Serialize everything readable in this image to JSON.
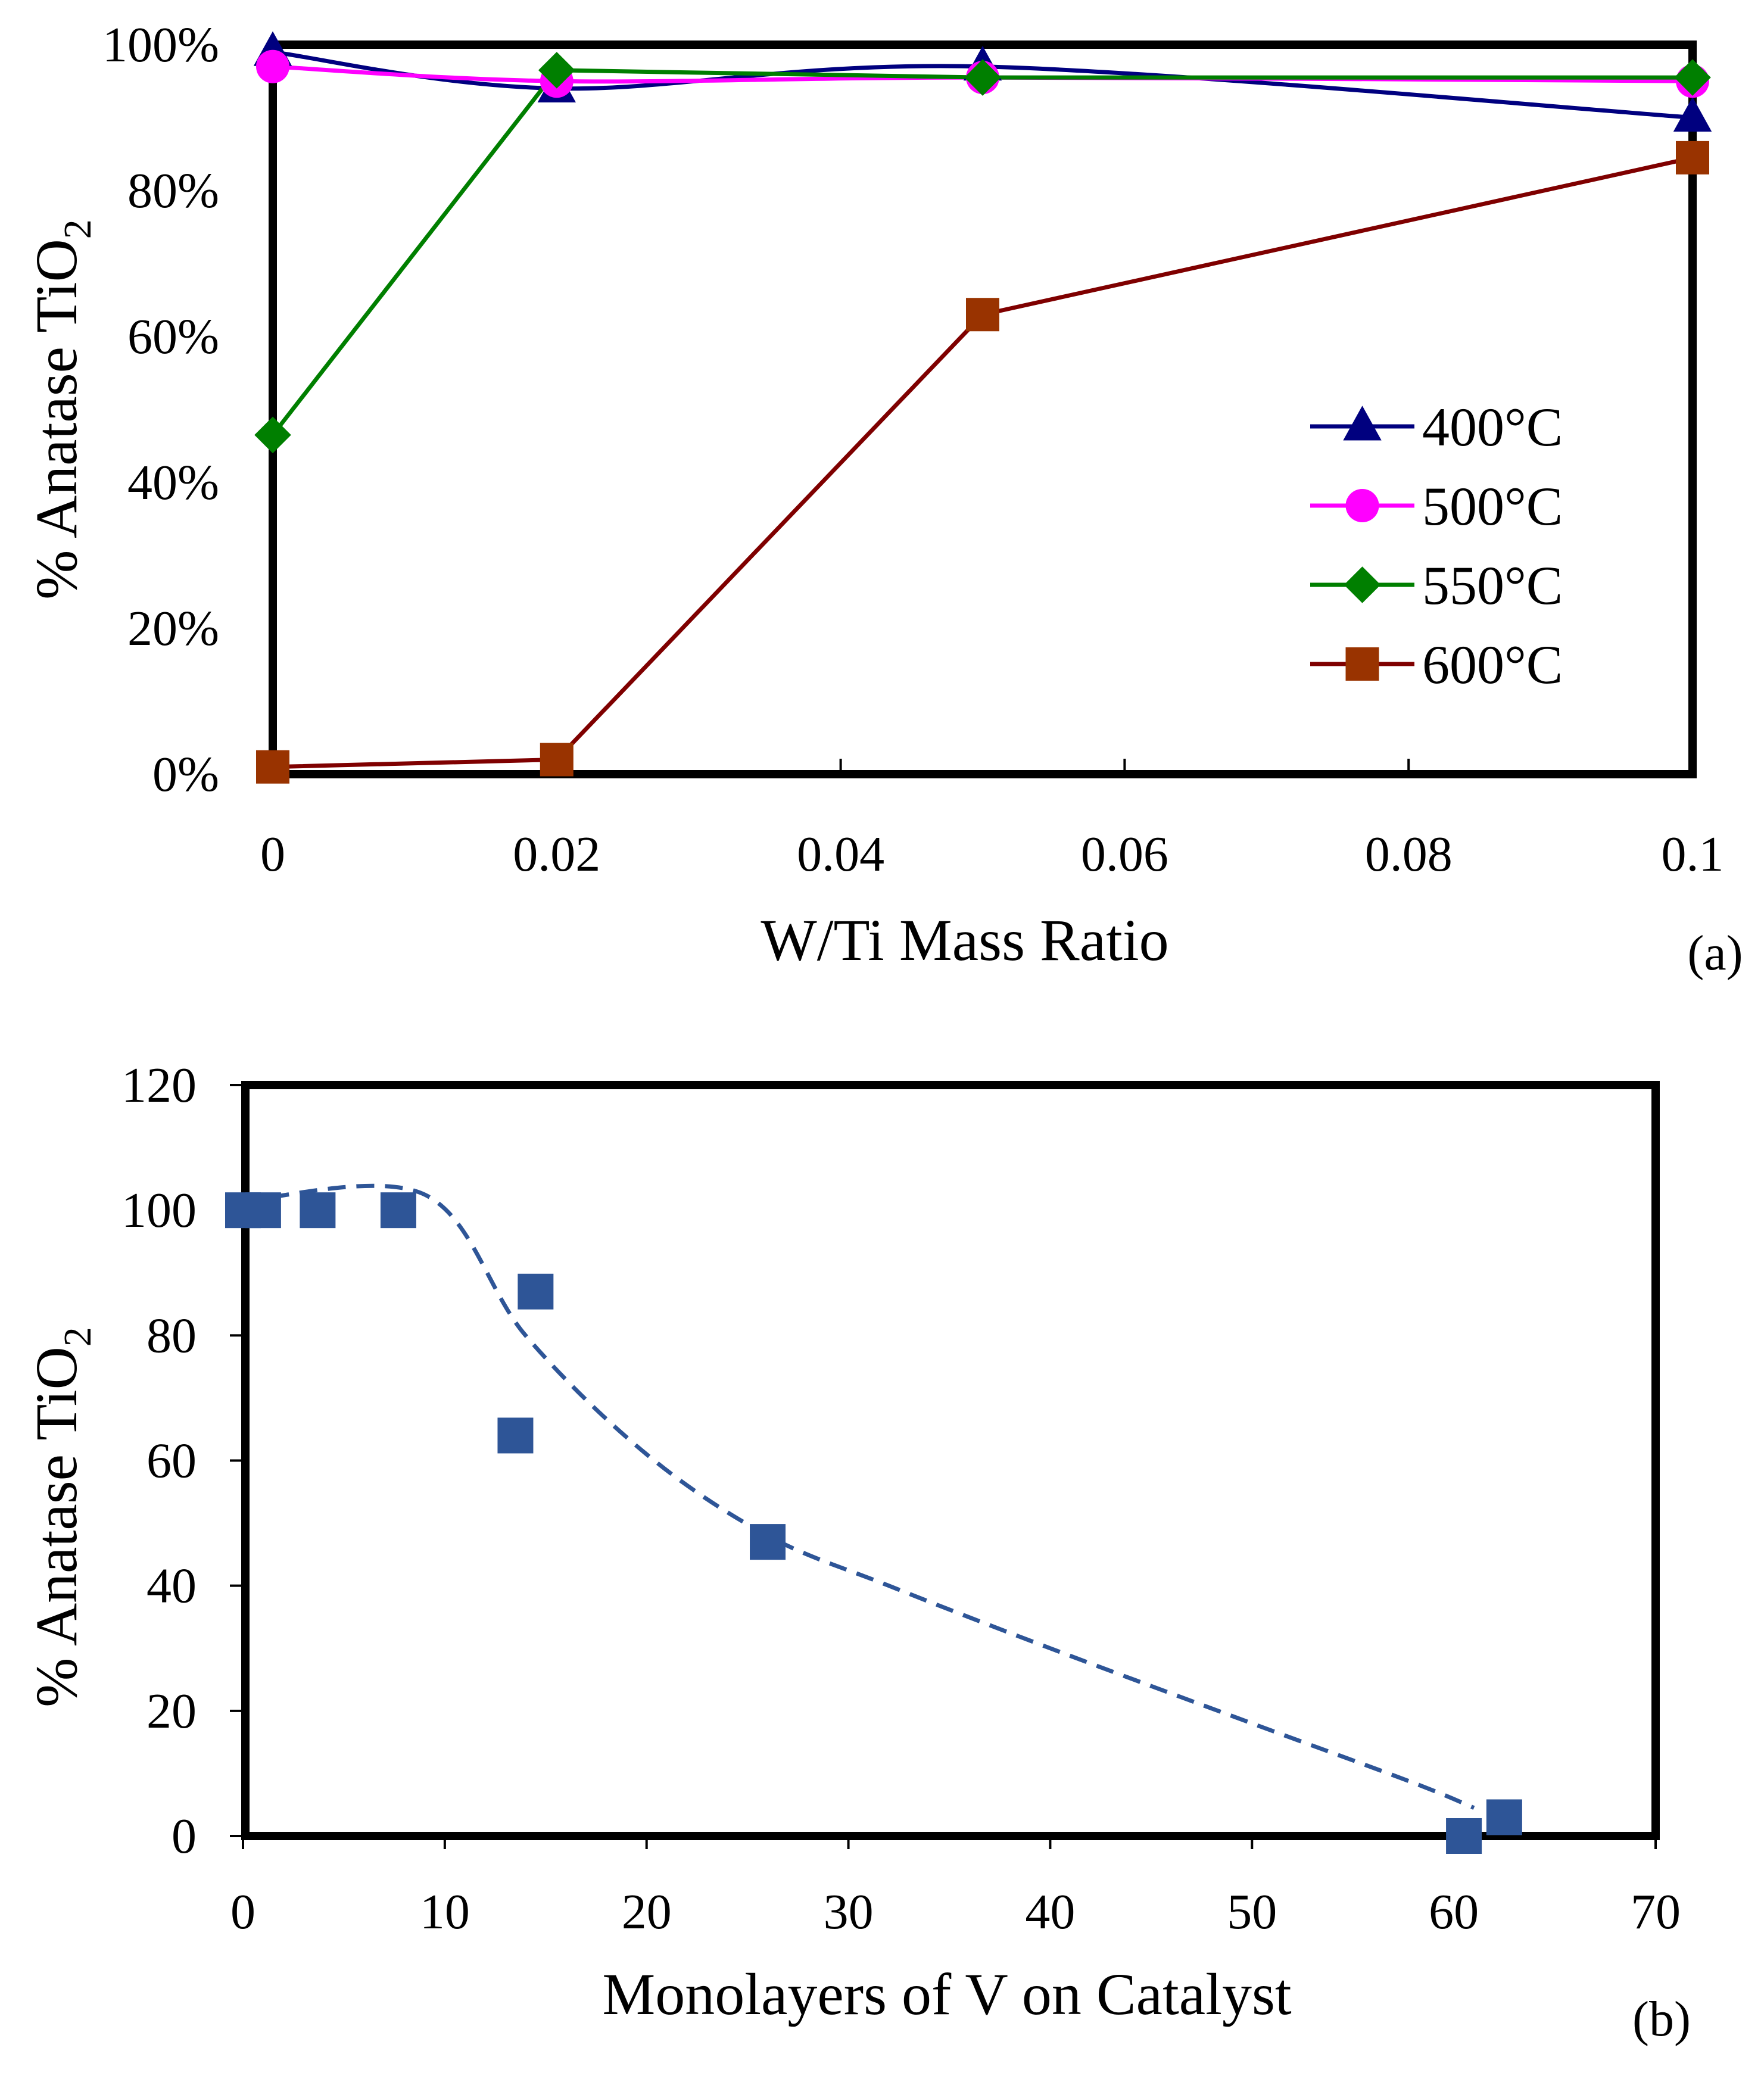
{
  "chart_data": [
    {
      "type": "line",
      "panel_label": "(a)",
      "title": "",
      "xlabel": "W/Ti Mass Ratio",
      "ylabel": "% Anatase TiO",
      "ylabel_subscript": "2",
      "x": [
        0,
        0.02,
        0.05,
        0.1
      ],
      "xlim": [
        0,
        0.1
      ],
      "ylim": [
        0,
        100
      ],
      "x_ticks": [
        0,
        0.02,
        0.04,
        0.06,
        0.08,
        0.1
      ],
      "x_tick_labels": [
        "0",
        "0.02",
        "0.04",
        "0.06",
        "0.08",
        "0.1"
      ],
      "y_ticks": [
        0,
        20,
        40,
        60,
        80,
        100
      ],
      "y_tick_labels": [
        "0%",
        "20%",
        "40%",
        "60%",
        "80%",
        "100%"
      ],
      "legend_position": "right",
      "series": [
        {
          "name": "400°C",
          "values": [
            99,
            94,
            97,
            90
          ],
          "color": "#00007f",
          "marker": "triangle",
          "smooth": true
        },
        {
          "name": "500°C",
          "values": [
            97,
            95,
            95.5,
            95
          ],
          "color": "#ff00ff",
          "marker": "circle",
          "smooth": true
        },
        {
          "name": "550°C",
          "values": [
            46.5,
            96.5,
            95.5,
            95.5
          ],
          "color": "#007f00",
          "marker": "diamond",
          "smooth": false
        },
        {
          "name": "600°C",
          "values": [
            1,
            2,
            63,
            84.5
          ],
          "color": "#7f0000",
          "marker_color": "#993300",
          "marker": "square",
          "smooth": false
        }
      ]
    },
    {
      "type": "scatter",
      "panel_label": "(b)",
      "title": "",
      "xlabel": "Monolayers of V on Catalyst",
      "ylabel": "% Anatase TiO",
      "ylabel_subscript": "2",
      "xlim": [
        0,
        70
      ],
      "ylim": [
        0,
        120
      ],
      "x_ticks": [
        0,
        10,
        20,
        30,
        40,
        50,
        60,
        70
      ],
      "x_tick_labels": [
        "0",
        "10",
        "20",
        "30",
        "40",
        "50",
        "60",
        "70"
      ],
      "y_ticks": [
        0,
        20,
        40,
        60,
        80,
        100,
        120
      ],
      "y_tick_labels": [
        "0",
        "20",
        "40",
        "60",
        "80",
        "100",
        "120"
      ],
      "series": [
        {
          "name": "data",
          "color": "#2e5597",
          "marker": "square",
          "points": [
            [
              0,
              100
            ],
            [
              1,
              100
            ],
            [
              3.7,
              100
            ],
            [
              7.7,
              100
            ],
            [
              13.5,
              64
            ],
            [
              14.5,
              87
            ],
            [
              26,
              47
            ],
            [
              60.5,
              0
            ],
            [
              62.5,
              3
            ]
          ]
        }
      ],
      "trendline": {
        "style": "dashed",
        "color": "#2e5597",
        "points": [
          [
            0,
            101.5
          ],
          [
            9,
            102.5
          ],
          [
            14,
            80
          ],
          [
            20,
            61
          ],
          [
            26,
            48
          ],
          [
            32,
            40
          ],
          [
            40,
            30
          ],
          [
            50,
            18
          ],
          [
            58,
            8.5
          ],
          [
            61,
            4.5
          ]
        ]
      }
    }
  ]
}
